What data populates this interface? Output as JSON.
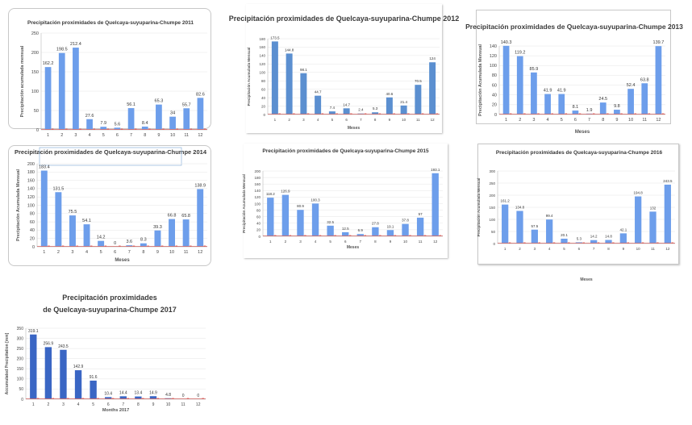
{
  "chart_data": [
    {
      "type": "bar",
      "title": "Precipitación proximidades de Quelcaya-suyuparina-Chumpe 2011",
      "xlabel": "",
      "ylabel": "Precipitación acumulada mensual",
      "categories": [
        "1",
        "2",
        "3",
        "4",
        "5",
        "6",
        "7",
        "8",
        "9",
        "10",
        "11",
        "12"
      ],
      "values": [
        162.2,
        198.5,
        212.4,
        27.6,
        7.9,
        5.6,
        56.1,
        8.4,
        65.3,
        34,
        55.7,
        82.6
      ],
      "ylim": [
        0,
        250
      ],
      "yticks": [
        0,
        50,
        100,
        150,
        200,
        250
      ],
      "color": "#6d9eeb"
    },
    {
      "type": "bar",
      "title": "Precipitación proximidades de Quelcaya-suyuparina-Chumpe 2012",
      "xlabel": "Meses",
      "ylabel": "Precipitación Acumulada Mensual",
      "categories": [
        "1",
        "2",
        "3",
        "4",
        "5",
        "6",
        "7",
        "8",
        "9",
        "10",
        "11",
        "12"
      ],
      "values": [
        173.5,
        144.8,
        98.1,
        44.7,
        7.4,
        14.7,
        2.4,
        5.3,
        40.6,
        21.4,
        70.5,
        124
      ],
      "ylim": [
        0,
        180
      ],
      "yticks": [
        0,
        20,
        40,
        60,
        80,
        100,
        120,
        140,
        160,
        180
      ],
      "color": "#5b8fd0"
    },
    {
      "type": "bar",
      "title": "Precipitación proximidades de Quelcaya-suyuparina-Chumpe 2013",
      "xlabel": "Meses",
      "ylabel": "Precipitación Acumulada Mensual",
      "categories": [
        "1",
        "2",
        "3",
        "4",
        "5",
        "6",
        "7",
        "8",
        "9",
        "10",
        "11",
        "12"
      ],
      "values": [
        140.3,
        119.2,
        85.9,
        41.9,
        41.9,
        8.1,
        1.9,
        24.5,
        9.8,
        52.4,
        63.8,
        139.7
      ],
      "ylim": [
        0,
        140
      ],
      "yticks": [
        0,
        20,
        40,
        60,
        80,
        100,
        120,
        140
      ],
      "color": "#6d9eeb"
    },
    {
      "type": "bar",
      "title": "Precipitación proximidades de Quelcaya-suyuparina-Chumpe 2014",
      "xlabel": "Meses",
      "ylabel": "Precipitación Acumulada Mensual",
      "categories": [
        "1",
        "2",
        "3",
        "4",
        "5",
        "6",
        "7",
        "8",
        "9",
        "10",
        "11",
        "12"
      ],
      "values": [
        183.4,
        131.5,
        75.5,
        54.1,
        14.2,
        0,
        3.6,
        8.3,
        39.3,
        66.8,
        65.8,
        138.9
      ],
      "ylim": [
        0,
        200
      ],
      "yticks": [
        0,
        20,
        40,
        60,
        80,
        100,
        120,
        140,
        160,
        180,
        200
      ],
      "color": "#6d9eeb"
    },
    {
      "type": "bar",
      "title": "Precipitación proximidades de Quelcaya-suyuparina-Chumpe 2015",
      "xlabel": "Meses",
      "ylabel": "Precipitación Acumulada Mensual",
      "categories": [
        "1",
        "2",
        "3",
        "4",
        "5",
        "6",
        "7",
        "8",
        "9",
        "10",
        "11",
        "12"
      ],
      "values": [
        118.2,
        126.9,
        80.9,
        100.3,
        32.5,
        12.5,
        6.9,
        27.8,
        19.1,
        37.8,
        57,
        193.1
      ],
      "ylim": [
        0,
        200
      ],
      "yticks": [
        0,
        20,
        40,
        60,
        80,
        100,
        120,
        140,
        160,
        180,
        200
      ],
      "color": "#6d9eeb"
    },
    {
      "type": "bar",
      "title": "Precipitación proximidades de Quelcaya-suyuparina-Chumpe 2016",
      "xlabel": "Meses",
      "ylabel": "Precipitación Acumulada Mensual",
      "categories": [
        "1",
        "2",
        "3",
        "4",
        "5",
        "6",
        "7",
        "8",
        "9",
        "10",
        "11",
        "12"
      ],
      "values": [
        161.2,
        134.8,
        57.5,
        99.4,
        20.1,
        5.3,
        14.2,
        14.8,
        42.1,
        194.8,
        132,
        243.5
      ],
      "ylim": [
        0,
        300
      ],
      "yticks": [
        0,
        50,
        100,
        150,
        200,
        250,
        300
      ],
      "color": "#6d9eeb"
    },
    {
      "type": "bar",
      "title": "Precipitación proximidades de Quelcaya-suyuparina-Chumpe 2017",
      "xlabel": "Months 2017",
      "ylabel": "Accumulated Precipitation [mm]",
      "categories": [
        "1",
        "2",
        "3",
        "4",
        "5",
        "6",
        "7",
        "8",
        "9",
        "10",
        "11",
        "12"
      ],
      "values": [
        319.1,
        256.9,
        243.5,
        142.9,
        91.6,
        10.4,
        14.4,
        13.4,
        14.9,
        4.8,
        0,
        0
      ],
      "ylim": [
        0,
        350
      ],
      "yticks": [
        0,
        50,
        100,
        150,
        200,
        250,
        300,
        350
      ],
      "color": "#3a66c4"
    }
  ]
}
